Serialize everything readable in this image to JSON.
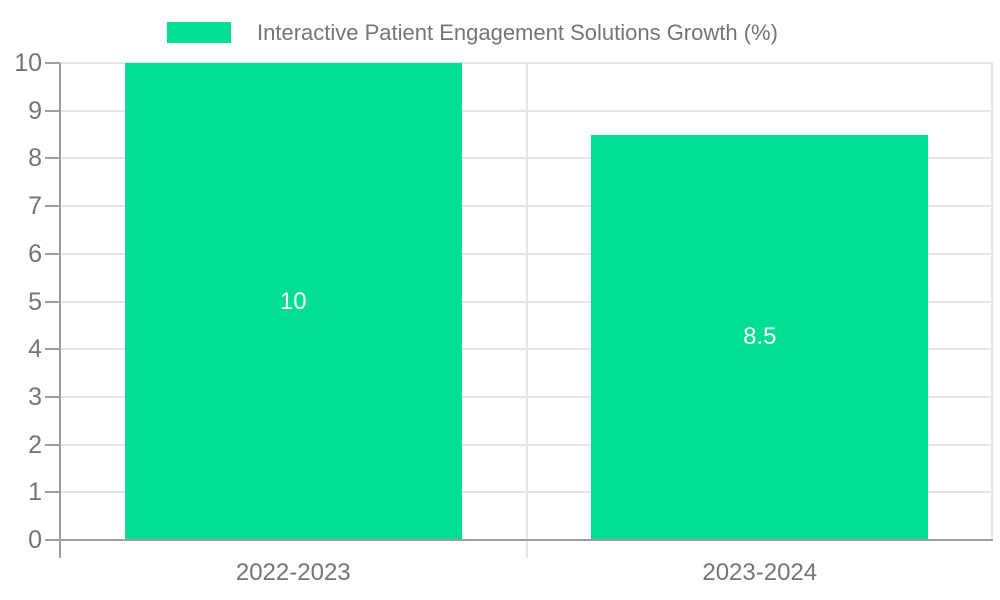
{
  "chart_data": {
    "type": "bar",
    "title": "Interactive Patient Engagement Solutions Growth (%)",
    "categories": [
      "2022-2023",
      "2023-2024"
    ],
    "series": [
      {
        "name": "Interactive Patient Engagement Solutions Growth (%)",
        "values": [
          10,
          8.5
        ]
      }
    ],
    "values": [
      10,
      8.5
    ],
    "data_labels": [
      "10",
      "8.5"
    ],
    "xlabel": "",
    "ylabel": "",
    "ylim": [
      0,
      10
    ],
    "yticks": [
      0,
      1,
      2,
      3,
      4,
      5,
      6,
      7,
      8,
      9,
      10
    ],
    "grid": true,
    "legend_position": "top"
  },
  "legend": {
    "label": "Interactive Patient Engagement Solutions Growth (%)"
  },
  "colors": {
    "bar": "#00DD94",
    "gridline": "#e5e5e5",
    "axis_line": "#9e9e9e",
    "tick_text": "#757575",
    "data_label_text": "#ffffff",
    "background": "#ffffff"
  }
}
